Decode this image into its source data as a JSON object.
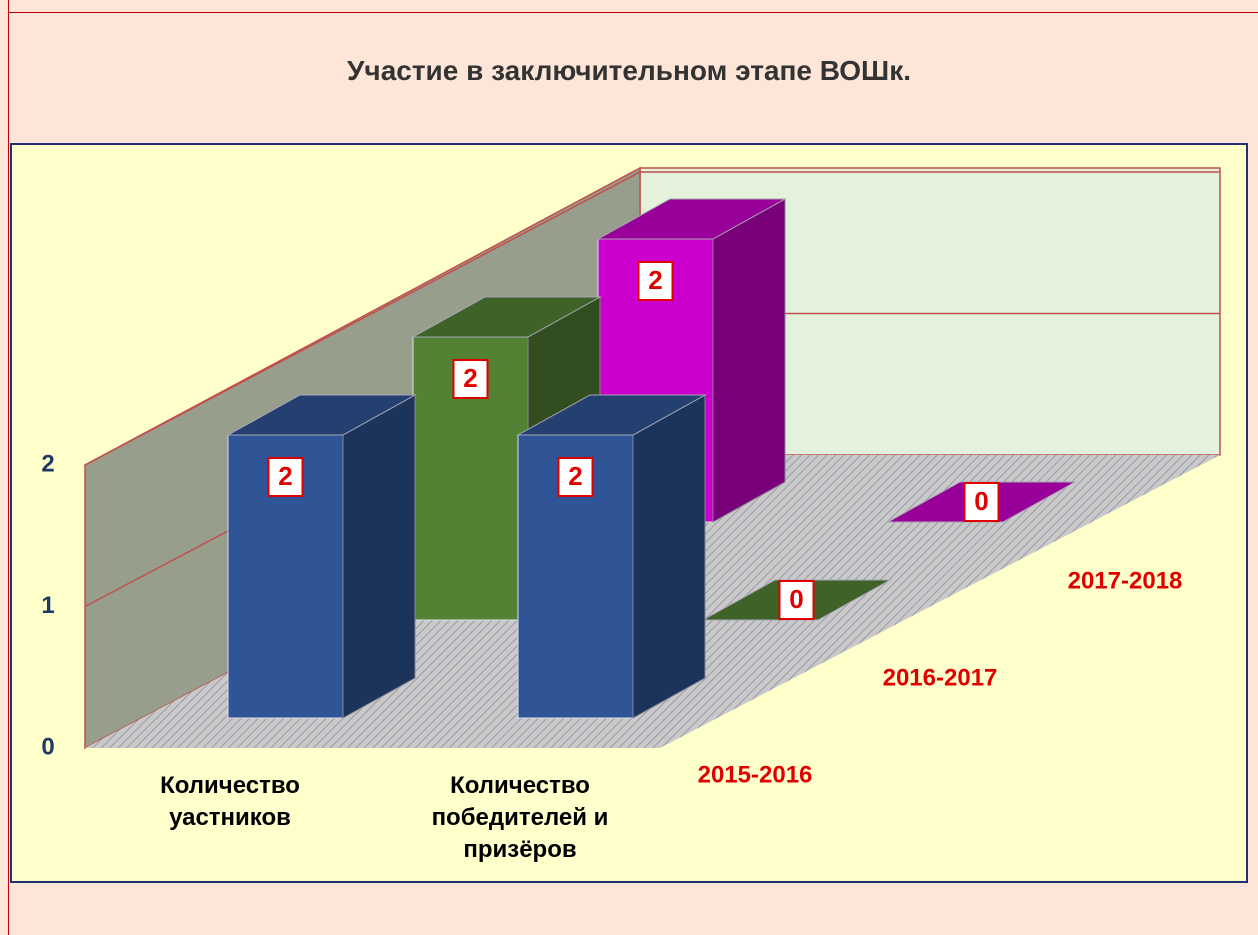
{
  "chart_data": {
    "type": "bar3d",
    "title": "Участие в заключительном этапе ВОШк.",
    "categories": [
      "Количество уастников",
      "Количество победителей и призёров"
    ],
    "series": [
      {
        "name": "2015-2016",
        "color": "#2f5597",
        "values": [
          2,
          2
        ]
      },
      {
        "name": "2016-2017",
        "color": "#548235",
        "values": [
          2,
          0
        ]
      },
      {
        "name": "2017-2018",
        "color": "#cc00cc",
        "values": [
          2,
          0
        ]
      }
    ],
    "ylim": [
      0,
      2
    ],
    "yticks": [
      0,
      1,
      2
    ],
    "grid": true
  }
}
